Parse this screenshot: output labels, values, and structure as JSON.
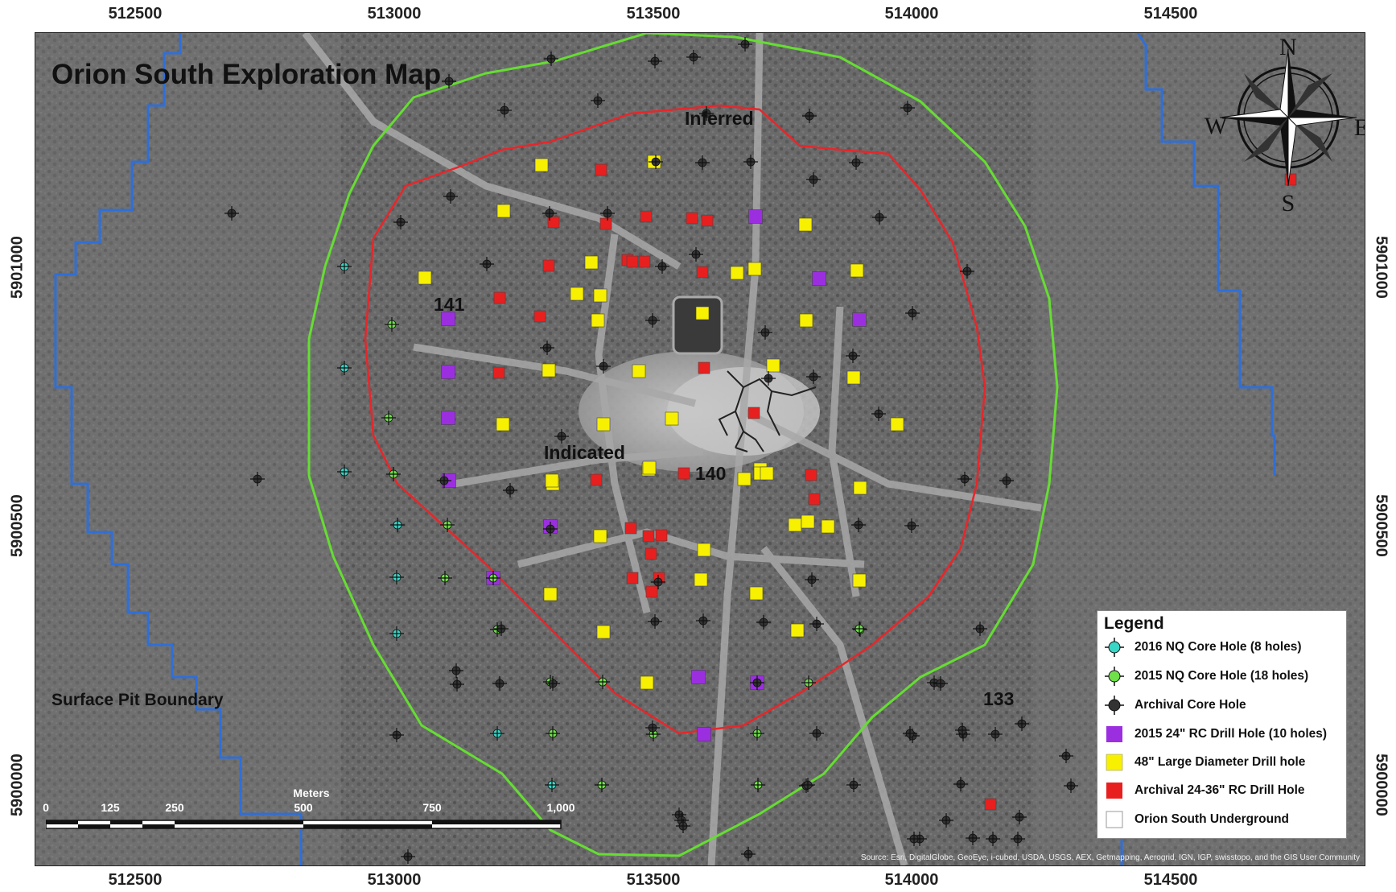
{
  "map": {
    "title": "Orion South Exploration Map",
    "labels": {
      "inferred": "Inferred",
      "indicated": "Indicated",
      "k141": "141",
      "k140": "140",
      "k133": "133",
      "surface_pit": "Surface Pit Boundary"
    },
    "easting_ticks": [
      "512500",
      "513000",
      "513500",
      "514000",
      "514500"
    ],
    "northing_ticks": [
      "5901000",
      "5900500",
      "5900000"
    ],
    "compass": {
      "n": "N",
      "s": "S",
      "e": "E",
      "w": "W"
    },
    "scale_bar": {
      "units": "Meters",
      "ticks": [
        "0",
        "125",
        "250",
        "500",
        "750",
        "1,000"
      ]
    },
    "credits": "Source: Esri, DigitalGlobe, GeoEye, i-cubed, USDA, USGS, AEX, Getmapping, Aerogrid, IGN, IGP, swisstopo, and the GIS User Community",
    "colors": {
      "indicated_boundary": "#e8262a",
      "inferred_boundary": "#66dd33",
      "lease_line": "#2f6fd8",
      "nq_2016": "#39d6c6",
      "nq_2015": "#6fe04a",
      "archival_core": "#333333",
      "rc_2015": "#9b2fe0",
      "large_diameter": "#f7f000",
      "archival_rc": "#e81f1f"
    }
  },
  "legend": {
    "title": "Legend",
    "items": [
      {
        "label": "2016 NQ Core Hole (8 holes)",
        "icon": "teal-core-hole-icon"
      },
      {
        "label": "2015 NQ Core Hole (18 holes)",
        "icon": "green-core-hole-icon"
      },
      {
        "label": "Archival Core Hole",
        "icon": "dark-core-hole-icon"
      },
      {
        "label": "2015 24\" RC Drill Hole (10 holes)",
        "icon": "purple-square-icon"
      },
      {
        "label": "48\" Large Diameter Drill hole",
        "icon": "yellow-square-icon"
      },
      {
        "label": "Archival 24-36\" RC Drill Hole",
        "icon": "red-square-icon"
      },
      {
        "label": "Orion South Underground",
        "icon": "white-square-icon"
      }
    ]
  }
}
